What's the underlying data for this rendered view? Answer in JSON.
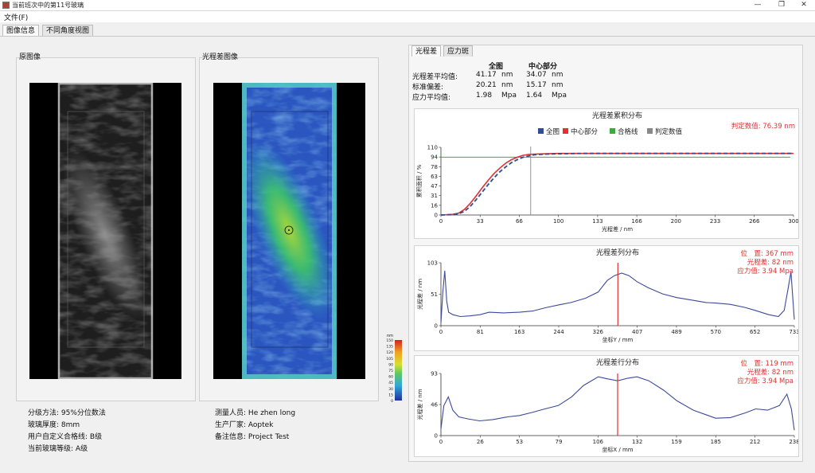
{
  "window": {
    "title": "当前班次中的第11号玻璃",
    "controls": {
      "minimize": "—",
      "maximize": "❐",
      "close": "✕"
    }
  },
  "menu": {
    "file": "文件(F)"
  },
  "main_tabs": [
    "图像信息",
    "不同角度视图"
  ],
  "original_image": {
    "title": "原图像"
  },
  "retardation_image": {
    "title": "光程差图像"
  },
  "colorbar": {
    "unit": "nm",
    "ticks": [
      "150",
      "135",
      "120",
      "105",
      "90",
      "75",
      "60",
      "45",
      "30",
      "15",
      "0"
    ]
  },
  "info_left": [
    {
      "label": "分级方法:",
      "value": "95%分位数法"
    },
    {
      "label": "玻璃厚度:",
      "value": "8mm"
    },
    {
      "label": "用户自定义合格线:",
      "value": "B级"
    },
    {
      "label": "当前玻璃等级:",
      "value": "A级"
    }
  ],
  "info_mid": [
    {
      "label": "测量人员:",
      "value": "He zhen long"
    },
    {
      "label": "生产厂家:",
      "value": "Aoptek"
    },
    {
      "label": "备注信息:",
      "value": "Project Test"
    }
  ],
  "right_tabs": [
    "光程差",
    "应力斑"
  ],
  "stats": {
    "headers": [
      "全图",
      "中心部分"
    ],
    "rows": [
      {
        "label": "光程差平均值:",
        "full": "41.17",
        "full_unit": "nm",
        "center": "34.07",
        "center_unit": "nm"
      },
      {
        "label": "标准偏差:",
        "full": "20.21",
        "full_unit": "nm",
        "center": "15.17",
        "center_unit": "nm"
      },
      {
        "label": "应力平均值:",
        "full": "1.98",
        "full_unit": "Mpa",
        "center": "1.64",
        "center_unit": "Mpa"
      }
    ]
  },
  "colors": {
    "full": "#2f4d8f",
    "center": "#e03030",
    "pass": "#3daa3d",
    "judge": "#888888",
    "profile": "#3b4a9a",
    "marker": "#e23030"
  },
  "chart_data": [
    {
      "type": "line",
      "title": "光程差累积分布",
      "annotation": "判定数值: 76.39 nm",
      "legend": [
        "全图",
        "中心部分",
        "合格线",
        "判定数值"
      ],
      "xlabel": "光程差 / nm",
      "ylabel": "累积面积 / %",
      "xlim": [
        0,
        300
      ],
      "ylim": [
        0,
        110
      ],
      "xticks": [
        "0",
        "33",
        "66",
        "100",
        "133",
        "166",
        "200",
        "233",
        "266",
        "300"
      ],
      "yticks": [
        "0",
        "16",
        "31",
        "47",
        "63",
        "78",
        "94",
        "110"
      ],
      "pass_line": 94,
      "judge_x": 76.39,
      "series": [
        {
          "name": "全图",
          "x": [
            0,
            10,
            15,
            20,
            25,
            30,
            35,
            40,
            45,
            50,
            55,
            60,
            65,
            70,
            75,
            80,
            90,
            100,
            120,
            150,
            200,
            300
          ],
          "y": [
            0,
            0.5,
            2,
            6,
            14,
            25,
            37,
            49,
            60,
            70,
            78,
            85,
            90,
            94,
            96,
            98,
            99,
            99.5,
            100,
            100,
            100,
            100
          ]
        },
        {
          "name": "中心部分",
          "x": [
            0,
            10,
            15,
            20,
            25,
            30,
            35,
            40,
            45,
            50,
            55,
            60,
            65,
            70,
            75,
            80,
            90,
            100,
            120,
            150,
            200,
            300
          ],
          "y": [
            0,
            1,
            3,
            9,
            19,
            31,
            44,
            56,
            67,
            76,
            84,
            90,
            94,
            97,
            98.5,
            99,
            99.5,
            100,
            100,
            100,
            100,
            100
          ]
        }
      ]
    },
    {
      "type": "line",
      "title": "光程差列分布",
      "annotation": [
        "位　置: 367 mm",
        "光程差: 82 nm",
        "应力值: 3.94 Mpa"
      ],
      "xlabel": "坐标Y / mm",
      "ylabel": "光程差 / nm",
      "xlim": [
        0,
        733
      ],
      "ylim": [
        0,
        103
      ],
      "xticks": [
        "0",
        "81",
        "163",
        "244",
        "326",
        "407",
        "489",
        "570",
        "652",
        "733"
      ],
      "yticks": [
        "0",
        "51",
        "103"
      ],
      "marker_x": 367,
      "series": [
        {
          "name": "",
          "x": [
            0,
            4,
            8,
            12,
            16,
            25,
            40,
            60,
            81,
            100,
            130,
            163,
            190,
            220,
            244,
            270,
            300,
            326,
            345,
            360,
            375,
            390,
            407,
            430,
            460,
            489,
            520,
            550,
            570,
            600,
            630,
            652,
            680,
            700,
            712,
            720,
            726,
            733
          ],
          "y": [
            5,
            55,
            90,
            40,
            22,
            18,
            15,
            16,
            18,
            22,
            21,
            22,
            24,
            30,
            34,
            38,
            45,
            55,
            74,
            82,
            86,
            82,
            72,
            62,
            52,
            46,
            42,
            38,
            37,
            35,
            30,
            25,
            18,
            15,
            25,
            60,
            88,
            10
          ]
        }
      ]
    },
    {
      "type": "line",
      "title": "光程差行分布",
      "annotation": [
        "位　置: 119 mm",
        "光程差: 82 nm",
        "应力值: 3.94 Mpa"
      ],
      "xlabel": "坐标X / mm",
      "ylabel": "光程差 / nm",
      "xlim": [
        0,
        238
      ],
      "ylim": [
        0,
        93
      ],
      "xticks": [
        "0",
        "26",
        "53",
        "79",
        "106",
        "132",
        "159",
        "185",
        "212",
        "238"
      ],
      "yticks": [
        "0",
        "46",
        "93"
      ],
      "marker_x": 119,
      "series": [
        {
          "name": "",
          "x": [
            0,
            2,
            5,
            8,
            12,
            18,
            26,
            35,
            45,
            53,
            62,
            70,
            79,
            88,
            96,
            106,
            112,
            119,
            126,
            132,
            140,
            150,
            159,
            170,
            180,
            185,
            195,
            205,
            212,
            220,
            228,
            233,
            236,
            238
          ],
          "y": [
            10,
            45,
            58,
            38,
            28,
            25,
            22,
            24,
            28,
            30,
            35,
            40,
            45,
            58,
            75,
            88,
            85,
            82,
            86,
            88,
            82,
            68,
            52,
            38,
            30,
            26,
            27,
            34,
            40,
            38,
            45,
            62,
            40,
            8
          ]
        }
      ]
    }
  ]
}
